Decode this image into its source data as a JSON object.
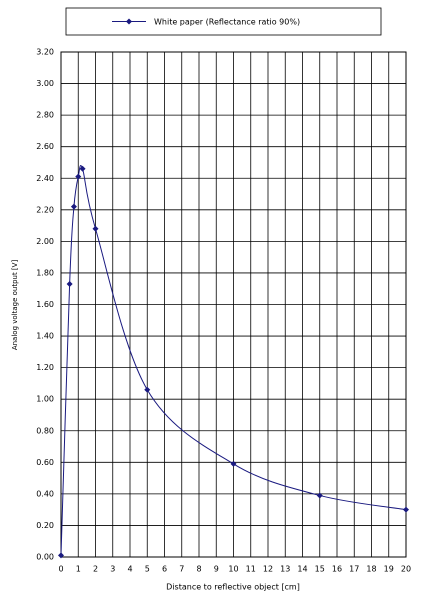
{
  "chart_data": {
    "type": "line",
    "x_label": "Distance to reflective object [cm]",
    "y_label": "Analog voltage output [V]",
    "x": [
      0,
      0.5,
      0.75,
      1,
      1.25,
      2,
      5,
      10,
      15,
      20
    ],
    "series": [
      {
        "name": "White paper (Reflectance ratio 90%)",
        "color": "#1a1a80",
        "values": [
          0.01,
          1.73,
          2.22,
          2.41,
          2.46,
          2.08,
          1.06,
          0.59,
          0.39,
          0.3
        ]
      }
    ],
    "xlim": [
      0,
      20
    ],
    "xticks": [
      0,
      1,
      2,
      3,
      4,
      5,
      6,
      7,
      8,
      9,
      10,
      11,
      12,
      13,
      14,
      15,
      16,
      17,
      18,
      19,
      20
    ],
    "ylim": [
      0,
      3.2
    ],
    "yticks": [
      {
        "value": 0,
        "label": "0.00"
      },
      {
        "value": 0.2,
        "label": "0.20"
      },
      {
        "value": 0.4,
        "label": "0.40"
      },
      {
        "value": 0.6,
        "label": "0.60"
      },
      {
        "value": 0.8,
        "label": "0.80"
      },
      {
        "value": 1.0,
        "label": "1.00"
      },
      {
        "value": 1.2,
        "label": "1.20"
      },
      {
        "value": 1.4,
        "label": "1.40"
      },
      {
        "value": 1.6,
        "label": "1.60"
      },
      {
        "value": 1.8,
        "label": "1.80"
      },
      {
        "value": 2.0,
        "label": "2.00"
      },
      {
        "value": 2.2,
        "label": "2.20"
      },
      {
        "value": 2.4,
        "label": "2.40"
      },
      {
        "value": 2.6,
        "label": "2.60"
      },
      {
        "value": 2.8,
        "label": "2.80"
      },
      {
        "value": 3.0,
        "label": "3.00"
      },
      {
        "value": 3.2,
        "label": "3.20"
      }
    ],
    "grid": true
  }
}
